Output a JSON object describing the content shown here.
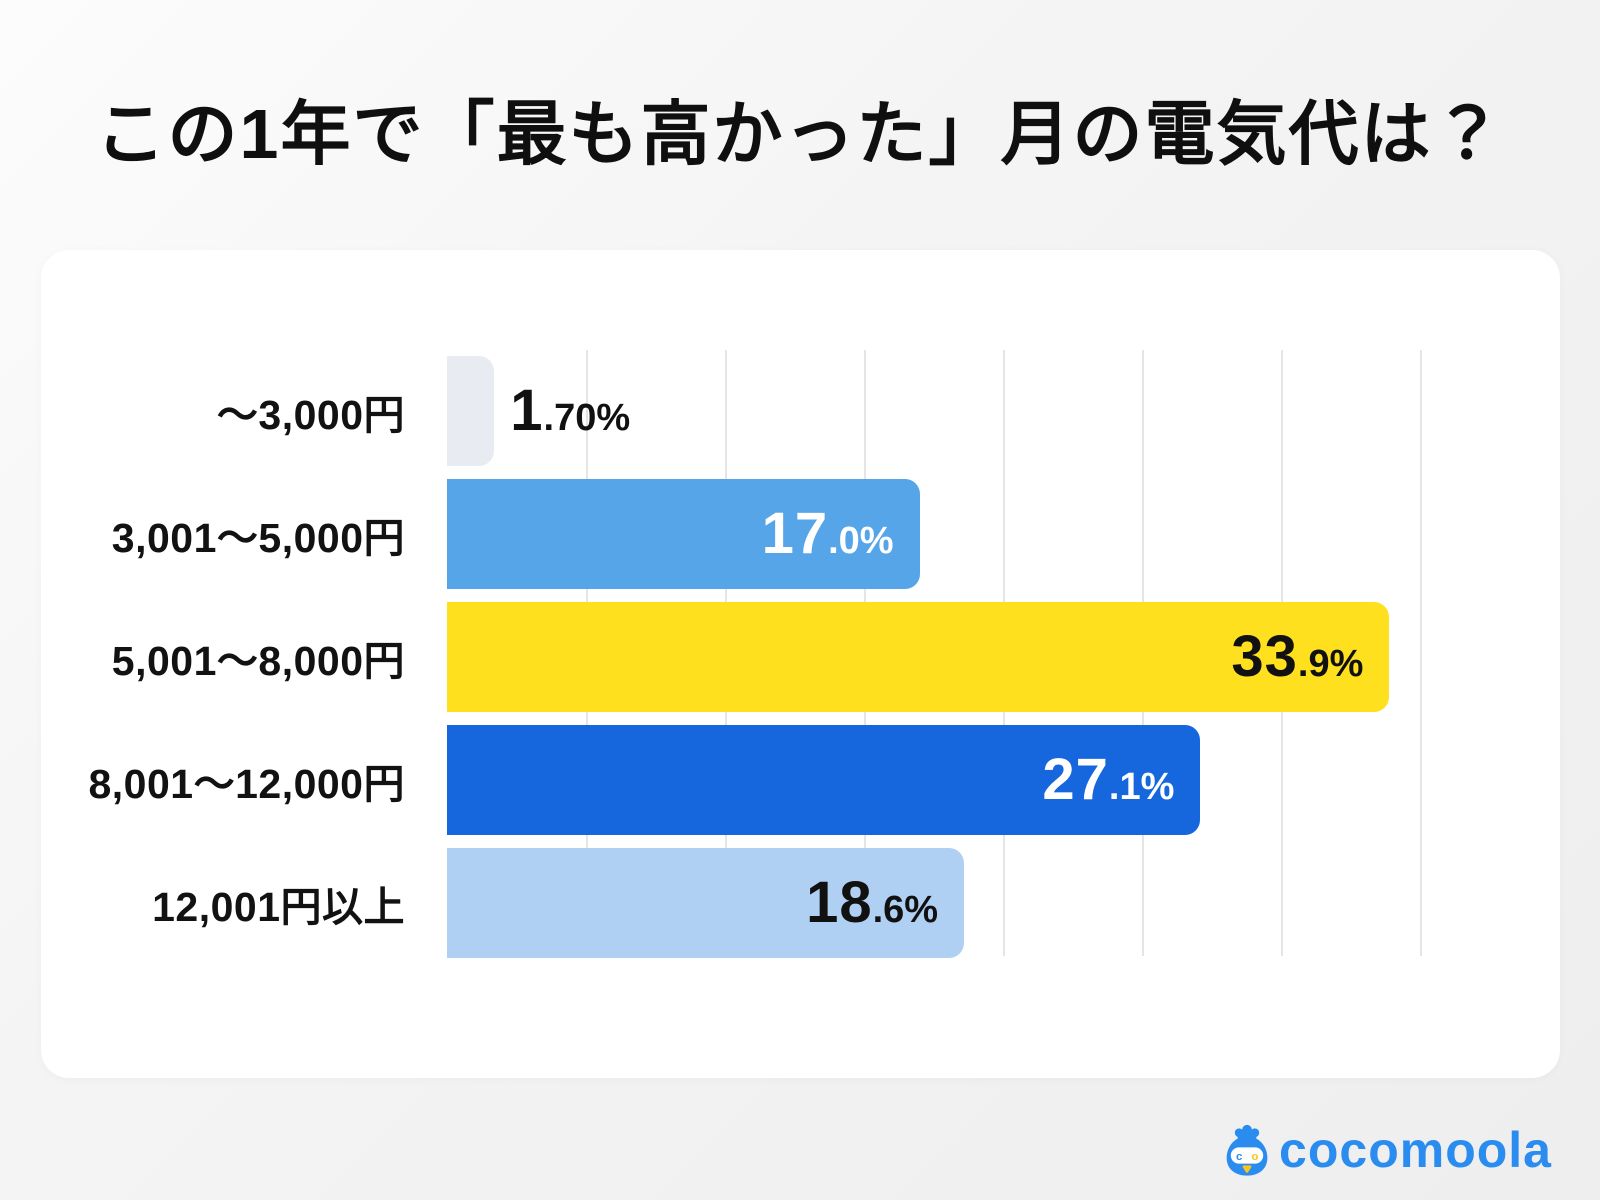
{
  "title": "この1年で「最も高かった」月の電気代は？",
  "chart_data": {
    "type": "bar",
    "orientation": "horizontal",
    "title": "この1年で「最も高かった」月の電気代は？",
    "categories": [
      "〜3,000円",
      "3,001〜5,000円",
      "5,001〜8,000円",
      "8,001〜12,000円",
      "12,001円以上"
    ],
    "values": [
      1.7,
      17.0,
      33.9,
      27.1,
      18.6
    ],
    "value_labels": [
      {
        "big": "1",
        "small": ".70%"
      },
      {
        "big": "17",
        "small": ".0%"
      },
      {
        "big": "33",
        "small": ".9%"
      },
      {
        "big": "27",
        "small": ".1%"
      },
      {
        "big": "18",
        "small": ".6%"
      }
    ],
    "bar_colors": [
      "#e9ebf2",
      "#56a5e9",
      "#ffe01f",
      "#1667dd",
      "#b0d0f3"
    ],
    "value_text_colors": [
      "#111111",
      "#ffffff",
      "#111111",
      "#ffffff",
      "#111111"
    ],
    "value_label_placement": [
      "outside",
      "inside",
      "inside",
      "inside",
      "inside"
    ],
    "xlim": [
      0,
      40
    ],
    "gridlines": {
      "every_percent": 5,
      "color": "#e5e5e8"
    },
    "legend": "none",
    "xlabel": "",
    "ylabel": ""
  },
  "logo": {
    "text": "cocomoola",
    "color": "#2b8cf0",
    "mascot": "cocomoola-money-bag-mascot",
    "mascot_eye_letters": [
      "c",
      "o"
    ],
    "mascot_beak_color": "#f7c51e"
  }
}
